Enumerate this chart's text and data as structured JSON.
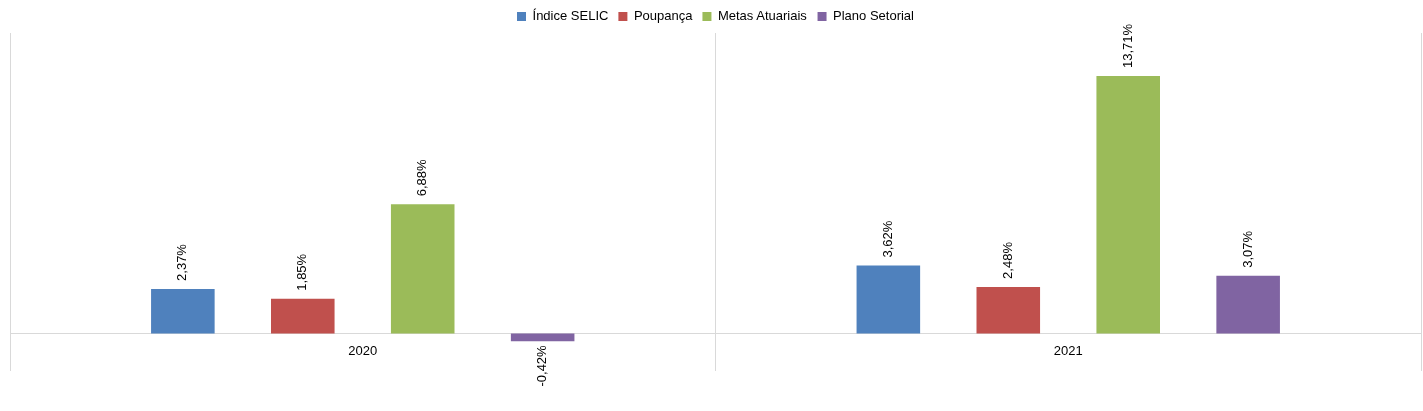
{
  "chart_data": {
    "type": "bar",
    "categories": [
      "2020",
      "2021"
    ],
    "series": [
      {
        "name": "Índice SELIC",
        "color": "#4f81bd",
        "values": [
          2.37,
          3.62
        ],
        "value_labels": [
          "2,37%",
          "3,62%"
        ]
      },
      {
        "name": "Poupança",
        "color": "#c0504d",
        "values": [
          1.85,
          2.48
        ],
        "value_labels": [
          "1,85%",
          "2,48%"
        ]
      },
      {
        "name": "Metas Atuariais",
        "color": "#9bbb59",
        "values": [
          6.88,
          13.71
        ],
        "value_labels": [
          "6,88%",
          "13,71%"
        ]
      },
      {
        "name": "Plano Setorial",
        "color": "#8064a2",
        "values": [
          -0.42,
          3.07
        ],
        "value_labels": [
          "-0,42%",
          "3,07%"
        ]
      }
    ],
    "legend": "top",
    "grid": "x",
    "tick_labels": "x"
  }
}
